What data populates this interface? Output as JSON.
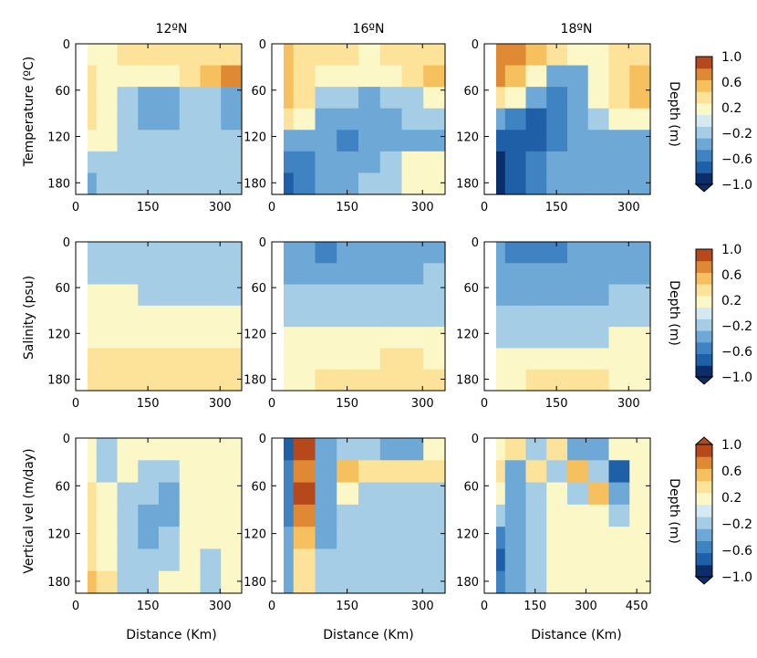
{
  "chart_data": {
    "type": "heatmap",
    "column_titles": [
      "12ºN",
      "16ºN",
      "18ºN"
    ],
    "row_labels": [
      "Temperature (ºC)",
      "Salinity (psu)",
      "Vertical vel (m/day)"
    ],
    "side_label": "Depth (m)",
    "xlabel": "Distance (Km)",
    "y_ticks": [
      "0",
      "60",
      "120",
      "180"
    ],
    "x_ticks": [
      [
        "0",
        "150",
        "300"
      ],
      [
        "0",
        "150",
        "300"
      ],
      [
        "0",
        "150",
        "300"
      ],
      [
        "0",
        "150",
        "300"
      ],
      [
        "0",
        "150",
        "300"
      ],
      [
        "0",
        "150",
        "300"
      ],
      [
        "0",
        "150",
        "300"
      ],
      [
        "0",
        "150",
        "300"
      ],
      [
        "0",
        "150",
        "300",
        "450"
      ]
    ],
    "colorbar": {
      "ticks": [
        "1.0",
        "0.6",
        "0.2",
        "−0.2",
        "−0.6",
        "−1.0"
      ],
      "levels": [
        -1.0,
        -0.8,
        -0.6,
        -0.4,
        -0.2,
        0.0,
        0.2,
        0.4,
        0.6,
        0.8,
        1.0
      ],
      "colors": [
        "#0b2e6b",
        "#1f5fa8",
        "#3f83c2",
        "#6ea8d6",
        "#a6cde6",
        "#d3eaf3",
        "#fcf7c6",
        "#fde39a",
        "#f6c05f",
        "#e08935",
        "#b5491b"
      ]
    },
    "colorbar_variants": [
      "min",
      "min",
      "both"
    ],
    "ranges": {
      "depth": [
        0,
        195
      ],
      "distance": [
        [
          0,
          345
        ],
        [
          0,
          345
        ],
        [
          0,
          345
        ],
        [
          0,
          345
        ],
        [
          0,
          345
        ],
        [
          0,
          345
        ],
        [
          0,
          345
        ],
        [
          0,
          345
        ],
        [
          0,
          490
        ]
      ]
    },
    "panel_values": [
      [
        [
          0.1,
          0.1,
          0.2,
          0.2,
          0.2,
          0.2,
          0.2,
          0.3
        ],
        [
          0.2,
          0.1,
          0.0,
          0.0,
          0.1,
          0.2,
          0.4,
          0.6
        ],
        [
          0.3,
          0.0,
          -0.2,
          -0.3,
          -0.3,
          -0.2,
          -0.2,
          -0.3
        ],
        [
          0.2,
          0.0,
          -0.2,
          -0.4,
          -0.3,
          -0.2,
          -0.2,
          -0.3
        ],
        [
          0.1,
          0.0,
          -0.1,
          -0.1,
          -0.1,
          -0.1,
          -0.1,
          -0.2
        ],
        [
          -0.2,
          -0.1,
          -0.1,
          -0.1,
          -0.1,
          -0.1,
          -0.1,
          -0.1
        ],
        [
          -0.3,
          -0.2,
          -0.1,
          -0.1,
          -0.1,
          -0.1,
          -0.1,
          -0.1
        ]
      ],
      [
        [
          0.4,
          0.3,
          0.2,
          0.2,
          0.1,
          0.2,
          0.3,
          0.3
        ],
        [
          0.5,
          0.3,
          0.1,
          0.0,
          0.0,
          0.1,
          0.3,
          0.4
        ],
        [
          0.4,
          0.2,
          -0.2,
          -0.2,
          -0.3,
          -0.2,
          -0.1,
          0.0
        ],
        [
          0.2,
          0.1,
          -0.3,
          -0.4,
          -0.4,
          -0.4,
          -0.2,
          -0.2
        ],
        [
          -0.3,
          -0.4,
          -0.4,
          -0.5,
          -0.4,
          -0.4,
          -0.3,
          -0.3
        ],
        [
          -0.5,
          -0.5,
          -0.4,
          -0.3,
          -0.3,
          -0.2,
          0.1,
          0.1
        ],
        [
          -0.8,
          -0.6,
          -0.4,
          -0.3,
          -0.2,
          -0.2,
          0.1,
          0.1
        ]
      ],
      [
        [
          0.7,
          0.6,
          0.4,
          0.2,
          0.0,
          0.1,
          0.2,
          0.3
        ],
        [
          0.6,
          0.4,
          0.0,
          -0.3,
          -0.3,
          0.0,
          0.3,
          0.5
        ],
        [
          0.3,
          0.0,
          -0.4,
          -0.5,
          -0.4,
          0.0,
          0.3,
          0.4
        ],
        [
          -0.3,
          -0.6,
          -0.7,
          -0.6,
          -0.4,
          -0.2,
          0.0,
          0.0
        ],
        [
          -0.8,
          -0.8,
          -0.7,
          -0.5,
          -0.4,
          -0.3,
          -0.3,
          -0.3
        ],
        [
          -0.9,
          -0.8,
          -0.6,
          -0.4,
          -0.3,
          -0.3,
          -0.3,
          -0.3
        ],
        [
          -1.0,
          -0.7,
          -0.5,
          -0.4,
          -0.3,
          -0.3,
          -0.3,
          -0.3
        ]
      ],
      [
        [
          -0.1,
          -0.1,
          -0.1,
          -0.1,
          -0.2,
          -0.2,
          -0.2,
          -0.2
        ],
        [
          -0.1,
          -0.1,
          -0.1,
          -0.2,
          -0.2,
          -0.2,
          -0.2,
          -0.2
        ],
        [
          0.1,
          0.1,
          0.0,
          -0.1,
          -0.1,
          -0.1,
          -0.2,
          -0.2
        ],
        [
          0.1,
          0.1,
          0.1,
          0.1,
          0.1,
          0.1,
          0.1,
          0.1
        ],
        [
          0.1,
          0.1,
          0.1,
          0.1,
          0.1,
          0.1,
          0.1,
          0.1
        ],
        [
          0.2,
          0.2,
          0.2,
          0.3,
          0.3,
          0.3,
          0.3,
          0.2
        ],
        [
          0.2,
          0.2,
          0.3,
          0.3,
          0.3,
          0.3,
          0.3,
          0.3
        ]
      ],
      [
        [
          -0.4,
          -0.4,
          -0.5,
          -0.4,
          -0.4,
          -0.4,
          -0.3,
          -0.3
        ],
        [
          -0.3,
          -0.3,
          -0.3,
          -0.4,
          -0.3,
          -0.3,
          -0.3,
          -0.2
        ],
        [
          -0.2,
          -0.2,
          -0.2,
          -0.2,
          -0.2,
          -0.2,
          -0.2,
          -0.2
        ],
        [
          -0.1,
          -0.1,
          -0.1,
          -0.1,
          -0.1,
          -0.1,
          -0.1,
          -0.1
        ],
        [
          0.1,
          0.1,
          0.1,
          0.1,
          0.1,
          0.1,
          0.1,
          0.1
        ],
        [
          0.1,
          0.1,
          0.1,
          0.1,
          0.1,
          0.2,
          0.2,
          0.1
        ],
        [
          0.1,
          0.1,
          0.2,
          0.2,
          0.2,
          0.2,
          0.2,
          0.2
        ]
      ],
      [
        [
          -0.4,
          -0.5,
          -0.5,
          -0.5,
          -0.4,
          -0.4,
          -0.3,
          -0.3
        ],
        [
          -0.3,
          -0.4,
          -0.4,
          -0.4,
          -0.3,
          -0.3,
          -0.3,
          -0.3
        ],
        [
          -0.3,
          -0.3,
          -0.3,
          -0.3,
          -0.3,
          -0.3,
          -0.2,
          -0.2
        ],
        [
          -0.2,
          -0.2,
          -0.2,
          -0.2,
          -0.2,
          -0.2,
          -0.1,
          -0.1
        ],
        [
          -0.1,
          -0.1,
          -0.1,
          -0.1,
          -0.1,
          -0.1,
          0.1,
          0.1
        ],
        [
          0.1,
          0.1,
          0.1,
          0.1,
          0.1,
          0.1,
          0.1,
          0.1
        ],
        [
          0.1,
          0.1,
          0.2,
          0.2,
          0.2,
          0.2,
          0.1,
          0.1
        ]
      ],
      [
        [
          0.1,
          -0.2,
          0.1,
          0.1,
          0.1,
          0.1,
          0.1,
          0.1
        ],
        [
          0.1,
          -0.2,
          0.1,
          -0.2,
          -0.1,
          0.1,
          0.1,
          0.1
        ],
        [
          0.2,
          0.1,
          -0.2,
          -0.2,
          -0.3,
          0.1,
          0.1,
          0.1
        ],
        [
          0.3,
          0.1,
          -0.2,
          -0.3,
          -0.3,
          0.1,
          0.1,
          0.1
        ],
        [
          0.3,
          0.1,
          -0.2,
          -0.3,
          -0.2,
          0.1,
          0.1,
          0.1
        ],
        [
          0.3,
          0.1,
          -0.2,
          -0.2,
          -0.1,
          0.1,
          -0.2,
          0.1
        ],
        [
          0.4,
          0.2,
          -0.1,
          -0.1,
          0.1,
          0.1,
          -0.2,
          0.1
        ]
      ],
      [
        [
          -0.8,
          0.9,
          -0.4,
          -0.2,
          -0.2,
          -0.3,
          -0.4,
          0.1
        ],
        [
          -0.6,
          0.6,
          -0.3,
          0.4,
          0.3,
          0.3,
          0.3,
          0.2
        ],
        [
          -0.5,
          0.8,
          -0.3,
          0.1,
          -0.2,
          -0.2,
          -0.1,
          -0.1
        ],
        [
          -0.5,
          0.7,
          -0.3,
          -0.2,
          -0.1,
          -0.1,
          -0.1,
          -0.1
        ],
        [
          -0.4,
          0.4,
          -0.3,
          -0.2,
          -0.1,
          -0.1,
          -0.1,
          -0.1
        ],
        [
          -0.3,
          0.3,
          -0.2,
          -0.1,
          -0.1,
          -0.1,
          -0.1,
          -0.1
        ],
        [
          -0.3,
          0.2,
          -0.1,
          -0.1,
          -0.1,
          -0.1,
          -0.1,
          -0.1
        ]
      ],
      [
        [
          0.1,
          0.2,
          -0.2,
          0.3,
          -0.4,
          -0.3,
          0.1,
          0.1
        ],
        [
          0.2,
          -0.3,
          0.3,
          -0.2,
          0.4,
          -0.2,
          -0.7,
          0.1
        ],
        [
          0.1,
          -0.3,
          -0.2,
          0.1,
          -0.2,
          0.4,
          -0.3,
          0.1
        ],
        [
          -0.2,
          -0.4,
          -0.2,
          0.1,
          0.1,
          0.1,
          -0.1,
          0.1
        ],
        [
          -0.6,
          -0.3,
          -0.2,
          0.1,
          0.1,
          0.1,
          0.1,
          0.1
        ],
        [
          -0.7,
          -0.3,
          -0.2,
          0.1,
          0.1,
          0.1,
          0.1,
          0.1
        ],
        [
          -0.6,
          -0.3,
          -0.2,
          0.1,
          0.1,
          0.1,
          0.1,
          0.1
        ]
      ]
    ]
  }
}
